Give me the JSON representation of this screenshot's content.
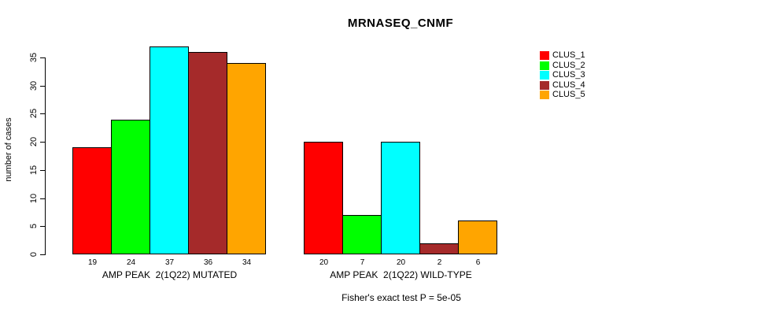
{
  "chart_data": {
    "type": "bar",
    "title": "MRNASEQ_CNMF",
    "ylabel": "number of cases",
    "annotation": "Fisher's exact test P = 5e-05",
    "categories": [
      "AMP PEAK  2(1Q22) MUTATED",
      "AMP PEAK  2(1Q22) WILD-TYPE"
    ],
    "series": [
      {
        "name": "CLUS_1",
        "color": "#FF0000",
        "values": [
          19,
          20
        ]
      },
      {
        "name": "CLUS_2",
        "color": "#00FF00",
        "values": [
          24,
          7
        ]
      },
      {
        "name": "CLUS_3",
        "color": "#00FFFF",
        "values": [
          37,
          20
        ]
      },
      {
        "name": "CLUS_4",
        "color": "#A52A2A",
        "values": [
          36,
          2
        ]
      },
      {
        "name": "CLUS_5",
        "color": "#FFA500",
        "values": [
          34,
          6
        ]
      }
    ],
    "bar_value_labels": [
      [
        19,
        24,
        37,
        36,
        34
      ],
      [
        20,
        7,
        20,
        2,
        6
      ]
    ],
    "yticks": [
      0,
      5,
      10,
      15,
      20,
      25,
      30,
      35
    ],
    "ylim": [
      0,
      37
    ],
    "grid": false,
    "legend_position": "top-right",
    "legend": [
      "CLUS_1",
      "CLUS_2",
      "CLUS_3",
      "CLUS_4",
      "CLUS_5"
    ],
    "background_color": "#FFFFFF",
    "axis_color": "#000000",
    "bar_border_color": "#000000"
  }
}
